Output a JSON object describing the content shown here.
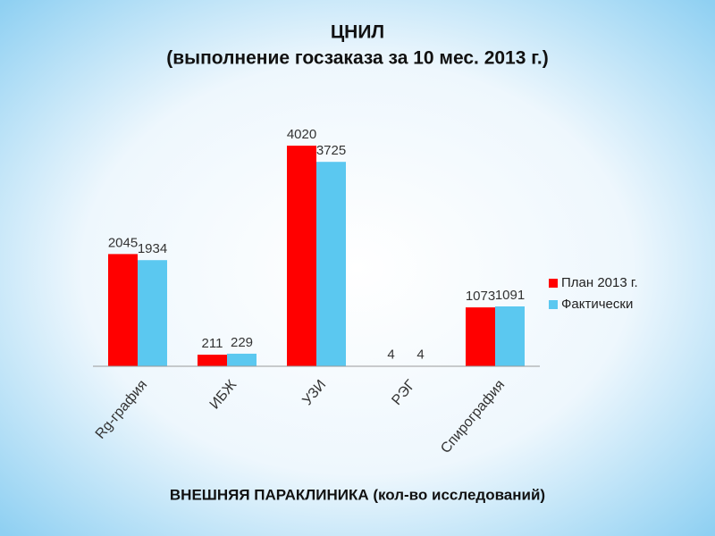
{
  "chart_data": {
    "type": "bar",
    "title": "ЦНИЛ",
    "subtitle": "(выполнение госзаказа за 10 мес. 2013 г.)",
    "xlabel": "ВНЕШНЯЯ ПАРАКЛИНИКА (кол-во исследований)",
    "categories": [
      "Rg-графия",
      "ИБЖ",
      "УЗИ",
      "РЭГ",
      "Спирография"
    ],
    "series": [
      {
        "name": "План 2013 г.",
        "color": "#ff0000",
        "values": [
          2045,
          211,
          4020,
          4,
          1073
        ]
      },
      {
        "name": "Фактически",
        "color": "#5bc8f0",
        "values": [
          1934,
          229,
          3725,
          4,
          1091
        ]
      }
    ],
    "ylim": [
      0,
      4500
    ],
    "legend": "right"
  }
}
